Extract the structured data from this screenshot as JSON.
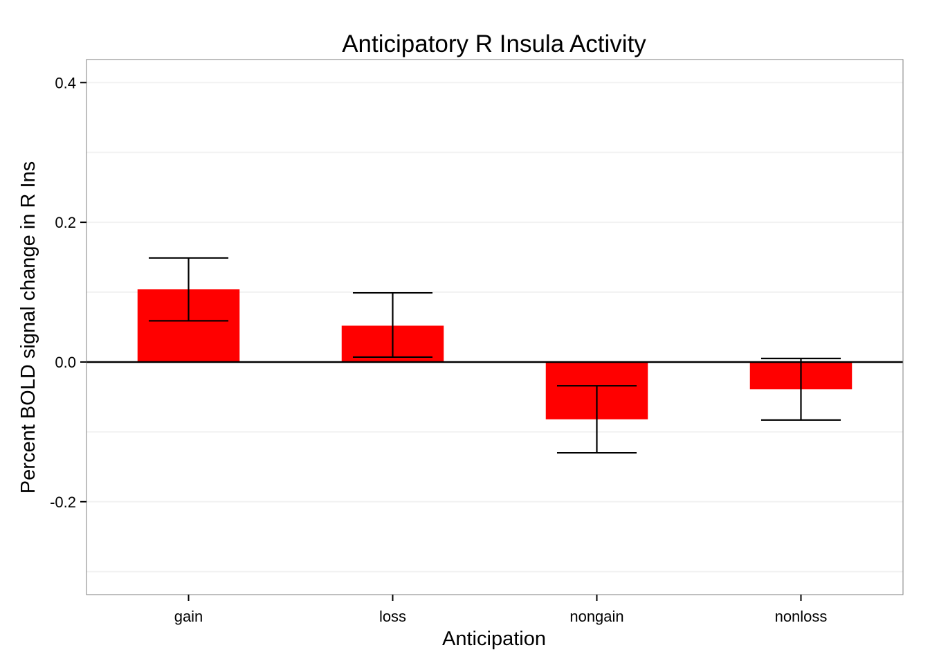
{
  "chart_data": {
    "type": "bar",
    "title": "Anticipatory R Insula Activity",
    "xlabel": "Anticipation",
    "ylabel": "Percent BOLD signal change in R Ins",
    "categories": [
      "gain",
      "loss",
      "nongain",
      "nonloss"
    ],
    "values": [
      0.104,
      0.052,
      -0.082,
      -0.039
    ],
    "error_low": [
      0.059,
      0.007,
      -0.13,
      -0.083
    ],
    "error_high": [
      0.149,
      0.099,
      -0.034,
      0.005
    ],
    "ylim": [
      -0.333,
      0.433
    ],
    "yticks": [
      0.4,
      0.2,
      0.0,
      -0.2
    ],
    "ytick_labels": [
      "0.4",
      "0.2",
      "0.0",
      "-0.2"
    ],
    "minor_gridlines": [
      0.3,
      0.1,
      -0.1,
      -0.3
    ],
    "reference_line": 0.0,
    "grid": true,
    "legend": "none",
    "colors": {
      "bar": "#ff0000",
      "errorbar": "#000000",
      "reference_line": "#000000",
      "panel_border": "#7f7f7f",
      "grid": "#f2f2f2",
      "text": "#000000"
    }
  }
}
